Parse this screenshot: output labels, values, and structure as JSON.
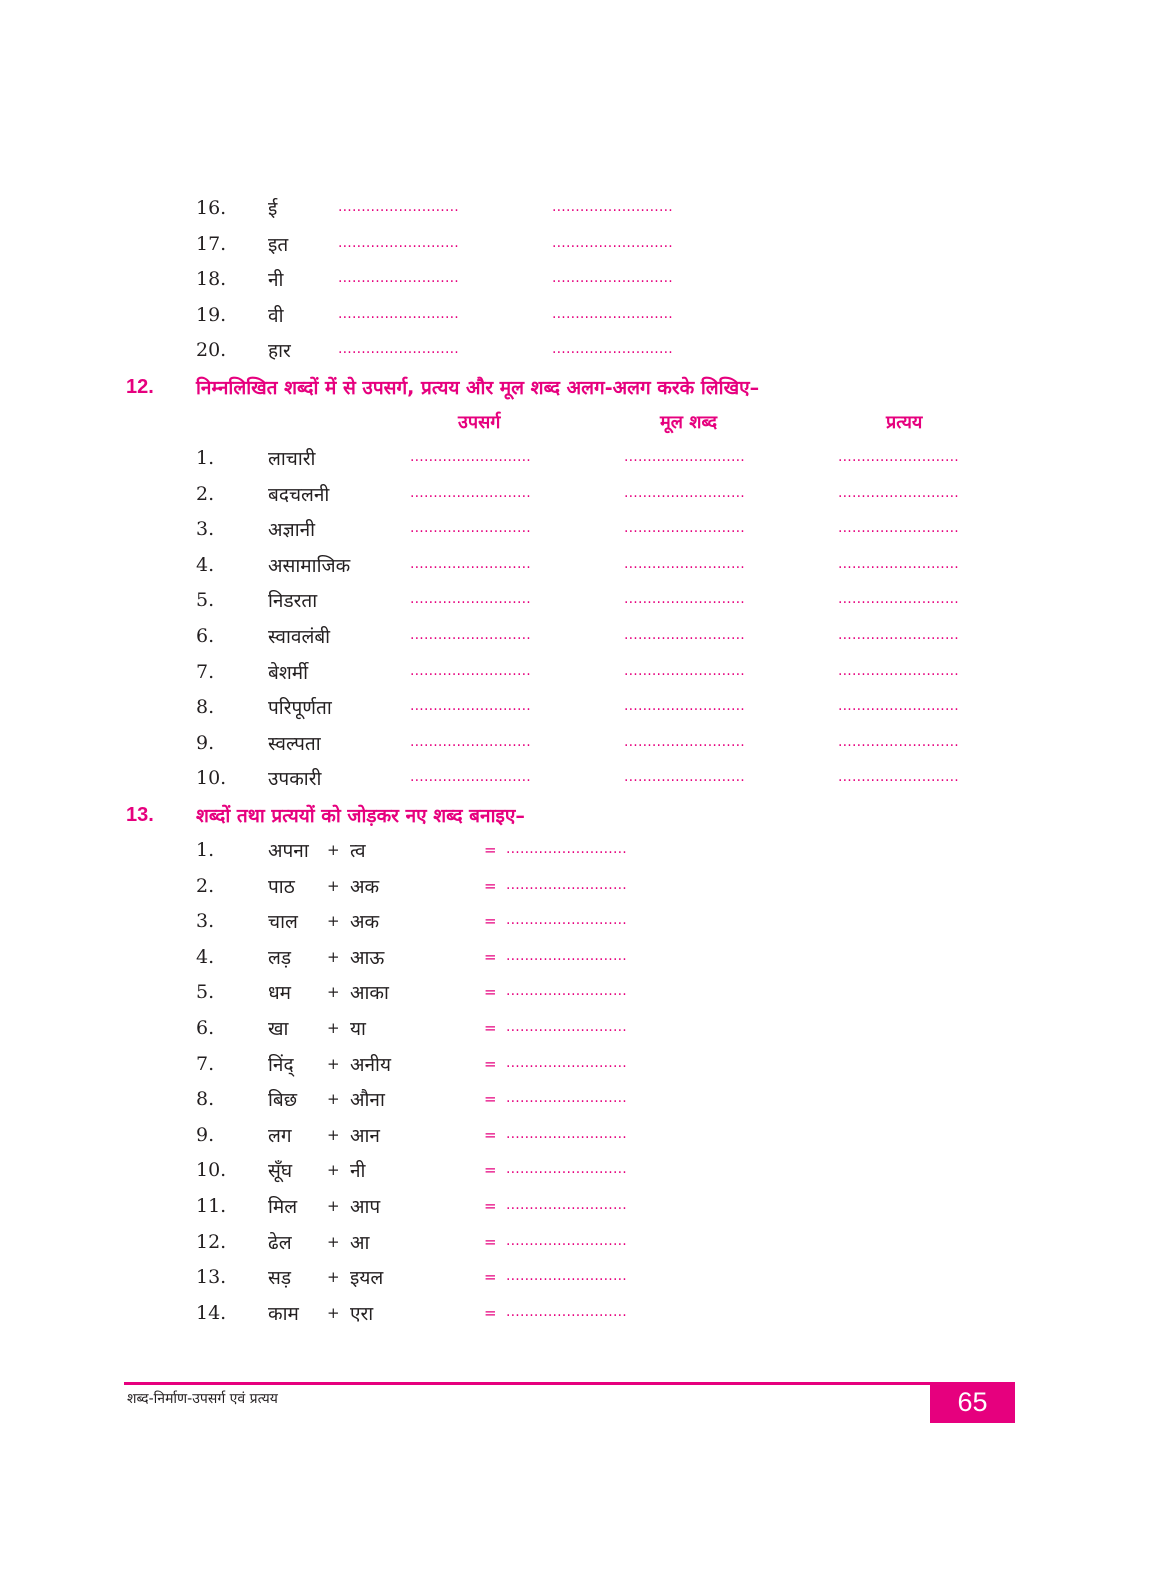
{
  "blank": "..........................",
  "section11_rows": [
    {
      "n": "16.",
      "word": "ई"
    },
    {
      "n": "17.",
      "word": "इत"
    },
    {
      "n": "18.",
      "word": "नी"
    },
    {
      "n": "19.",
      "word": "वी"
    },
    {
      "n": "20.",
      "word": "हार"
    }
  ],
  "section12": {
    "number": "12.",
    "instruction": "निम्नलिखित शब्दों में से उपसर्ग, प्रत्यय और मूल शब्द अलग-अलग करके लिखिए–",
    "columns": [
      "उपसर्ग",
      "मूल शब्द",
      "प्रत्यय"
    ],
    "rows": [
      {
        "n": "1.",
        "word": "लाचारी"
      },
      {
        "n": "2.",
        "word": "बदचलनी"
      },
      {
        "n": "3.",
        "word": "अज्ञानी"
      },
      {
        "n": "4.",
        "word": "असामाजिक"
      },
      {
        "n": "5.",
        "word": "निडरता"
      },
      {
        "n": "6.",
        "word": "स्वावलंबी"
      },
      {
        "n": "7.",
        "word": "बेशर्मी"
      },
      {
        "n": "8.",
        "word": "परिपूर्णता"
      },
      {
        "n": "9.",
        "word": "स्वल्पता"
      },
      {
        "n": "10.",
        "word": "उपकारी"
      }
    ]
  },
  "section13": {
    "number": "13.",
    "instruction": "शब्दों तथा प्रत्ययों को जोड़कर नए शब्द बनाइए–",
    "plus": "+",
    "equals": "=",
    "rows": [
      {
        "n": "1.",
        "word": "अपना",
        "suffix": "त्व"
      },
      {
        "n": "2.",
        "word": "पाठ",
        "suffix": "अक"
      },
      {
        "n": "3.",
        "word": "चाल",
        "suffix": "अक"
      },
      {
        "n": "4.",
        "word": "लड़",
        "suffix": "आऊ"
      },
      {
        "n": "5.",
        "word": "धम",
        "suffix": "आका"
      },
      {
        "n": "6.",
        "word": "खा",
        "suffix": "या"
      },
      {
        "n": "7.",
        "word": "निंद्",
        "suffix": "अनीय"
      },
      {
        "n": "8.",
        "word": "बिछ",
        "suffix": "औना"
      },
      {
        "n": "9.",
        "word": "लग",
        "suffix": "आन"
      },
      {
        "n": "10.",
        "word": "सूँघ",
        "suffix": "नी"
      },
      {
        "n": "11.",
        "word": "मिल",
        "suffix": "आप"
      },
      {
        "n": "12.",
        "word": "ढेल",
        "suffix": "आ"
      },
      {
        "n": "13.",
        "word": "सड़",
        "suffix": "इयल"
      },
      {
        "n": "14.",
        "word": "काम",
        "suffix": "एरा"
      }
    ]
  },
  "footer": {
    "chapter": "शब्द-निर्माण-उपसर्ग एवं प्रत्यय",
    "page": "65"
  },
  "colors": {
    "accent": "#e6007e",
    "text": "#231f20"
  }
}
